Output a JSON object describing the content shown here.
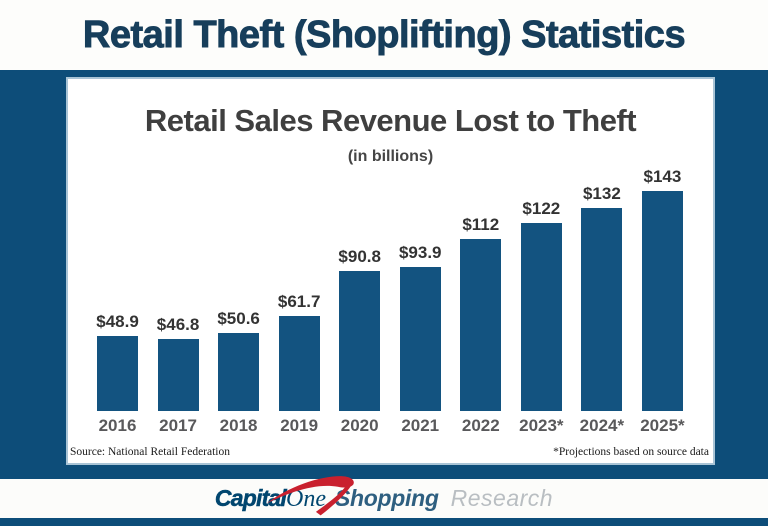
{
  "header": {
    "title": "Retail Theft (Shoplifting) Statistics"
  },
  "chart_data": {
    "type": "bar",
    "title": "Retail Sales Revenue Lost to Theft",
    "subtitle": "(in billions)",
    "categories": [
      "2016",
      "2017",
      "2018",
      "2019",
      "2020",
      "2021",
      "2022",
      "2023*",
      "2024*",
      "2025*"
    ],
    "values": [
      48.9,
      46.8,
      50.6,
      61.7,
      90.8,
      93.9,
      112,
      122,
      132,
      143
    ],
    "value_labels": [
      "$48.9",
      "$46.8",
      "$50.6",
      "$61.7",
      "$90.8",
      "$93.9",
      "$112",
      "$122",
      "$132",
      "$143"
    ],
    "unit": "USD billions",
    "ylim": [
      0,
      143
    ],
    "grid": false,
    "legend": false,
    "bar_color": "#135380",
    "source_note": "Source: National Retail Federation",
    "projection_note": "*Projections based on source data"
  },
  "footer": {
    "logo": {
      "capital": "Capital",
      "one": "One",
      "shopping": "Shopping",
      "research": "Research"
    }
  },
  "colors": {
    "frame_navy": "#0D4D79",
    "bar_navy": "#135380",
    "title_navy": "#173E5B",
    "card_border": "#A9C4D6",
    "logo_navy": "#01466F",
    "shopping_navy": "#2E5F80",
    "research_gray": "#B9BEC2",
    "swoosh_red": "#C9202E"
  }
}
